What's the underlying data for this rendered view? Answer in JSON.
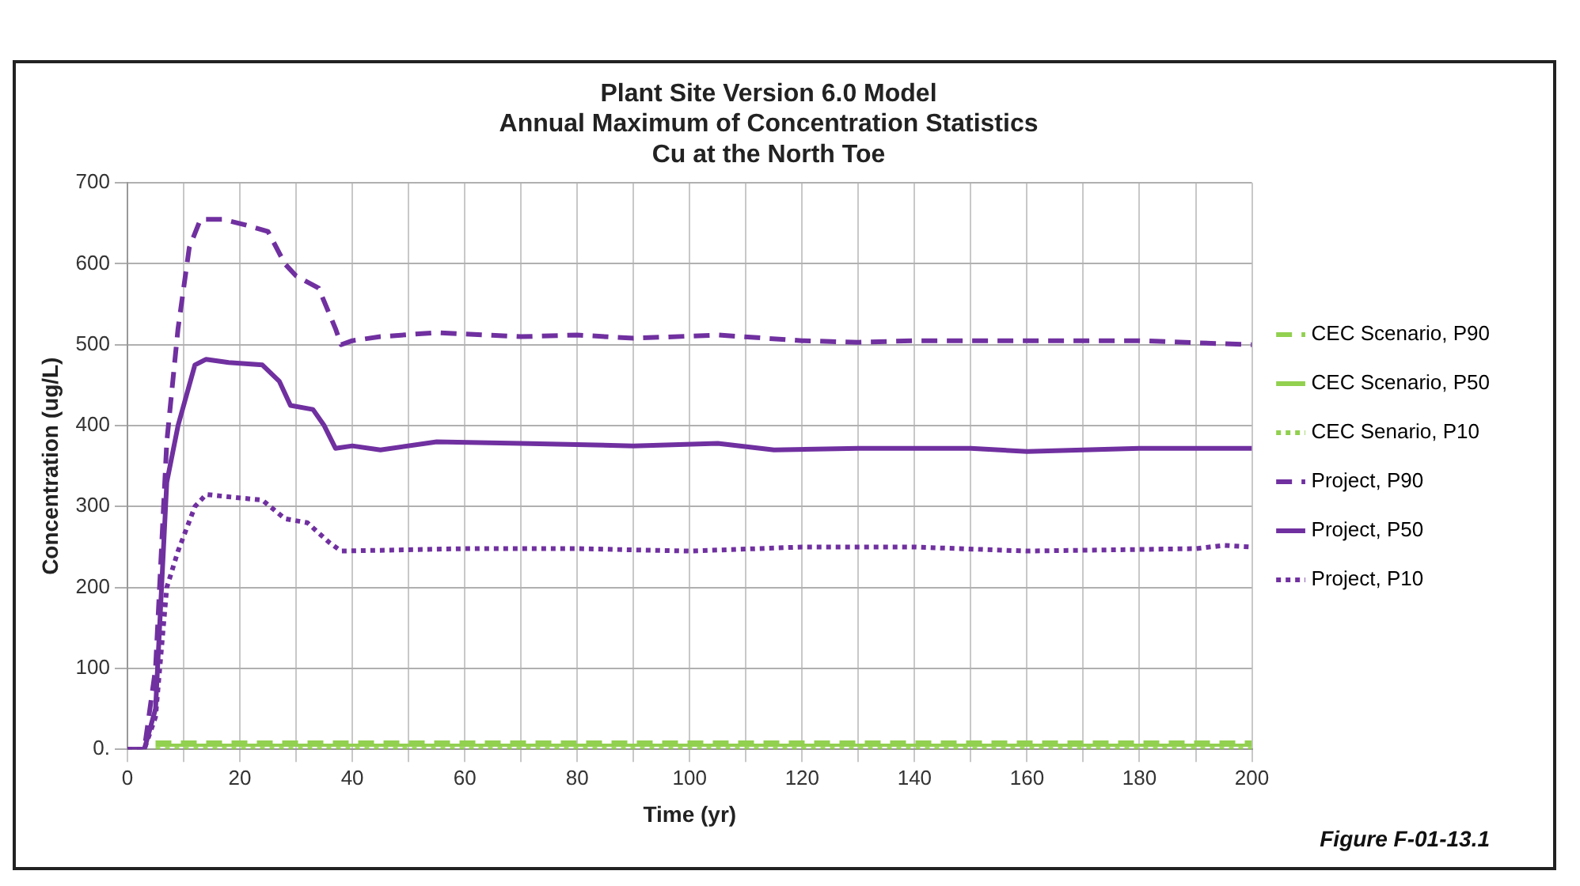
{
  "chart_data": {
    "type": "line",
    "title": [
      "Plant Site Version 6.0 Model",
      "Annual Maximum of Concentration Statistics",
      "Cu at the North Toe"
    ],
    "xlabel": "Time (yr)",
    "ylabel": "Concentration (ug/L)",
    "xlim": [
      0,
      200
    ],
    "xticks": [
      0,
      {
        "value": 10,
        "label": null
      },
      20,
      {
        "value": 30,
        "label": null
      },
      40,
      {
        "value": 50,
        "label": null
      },
      60,
      {
        "value": 70,
        "label": null
      },
      80,
      {
        "value": 90,
        "label": null
      },
      100,
      {
        "value": 110,
        "label": null
      },
      120,
      {
        "value": 130,
        "label": null
      },
      140,
      {
        "value": 150,
        "label": null
      },
      160,
      {
        "value": 170,
        "label": null
      },
      180,
      {
        "value": 190,
        "label": null
      },
      200
    ],
    "ylim": [
      0,
      700
    ],
    "yticks": [
      {
        "value": 0,
        "label": "0."
      },
      100,
      200,
      300,
      400,
      500,
      600,
      700
    ],
    "grid": true,
    "legend": "right",
    "marker": "none",
    "series": [
      {
        "name": "CEC Scenario, P90",
        "color": "#92d050",
        "line_style": "dashed",
        "x": [
          5,
          200
        ],
        "values": [
          9,
          9
        ]
      },
      {
        "name": "CEC Scenario, P50",
        "color": "#92d050",
        "line_style": "solid",
        "x": [
          5,
          200
        ],
        "values": [
          5,
          5
        ]
      },
      {
        "name": "CEC Senario, P10",
        "color": "#92d050",
        "line_style": "dotted",
        "x": [
          5,
          200
        ],
        "values": [
          1,
          1
        ]
      },
      {
        "name": "Project, P90",
        "color": "#7030a0",
        "line_style": "dashed",
        "x": [
          0,
          3,
          5,
          7,
          9,
          11,
          13,
          17,
          21,
          25,
          28,
          30,
          34,
          37,
          38,
          40,
          45,
          55,
          70,
          80,
          90,
          105,
          120,
          130,
          140,
          160,
          180,
          200
        ],
        "values": [
          0,
          0,
          100,
          380,
          520,
          620,
          655,
          655,
          648,
          640,
          600,
          585,
          570,
          520,
          500,
          505,
          510,
          515,
          510,
          512,
          508,
          512,
          505,
          503,
          505,
          505,
          505,
          500
        ]
      },
      {
        "name": "Project, P50",
        "color": "#7030a0",
        "line_style": "solid",
        "x": [
          0,
          3,
          5,
          7,
          9,
          12,
          14,
          18,
          24,
          27,
          29,
          33,
          35,
          37,
          40,
          45,
          55,
          70,
          90,
          105,
          115,
          130,
          150,
          160,
          180,
          200
        ],
        "values": [
          0,
          0,
          50,
          330,
          400,
          475,
          482,
          478,
          475,
          455,
          425,
          420,
          400,
          372,
          375,
          370,
          380,
          378,
          375,
          378,
          370,
          372,
          372,
          368,
          372,
          372
        ]
      },
      {
        "name": "Project, P10",
        "color": "#7030a0",
        "line_style": "dotted",
        "x": [
          0,
          3,
          5,
          7,
          9,
          12,
          14,
          18,
          24,
          28,
          32,
          36,
          38,
          60,
          80,
          100,
          120,
          140,
          160,
          190,
          195,
          200
        ],
        "values": [
          0,
          0,
          40,
          200,
          245,
          300,
          315,
          312,
          308,
          285,
          280,
          255,
          245,
          248,
          248,
          245,
          250,
          250,
          245,
          248,
          252,
          250
        ]
      }
    ],
    "annotations": [
      "Figure F-01-13.1"
    ]
  }
}
